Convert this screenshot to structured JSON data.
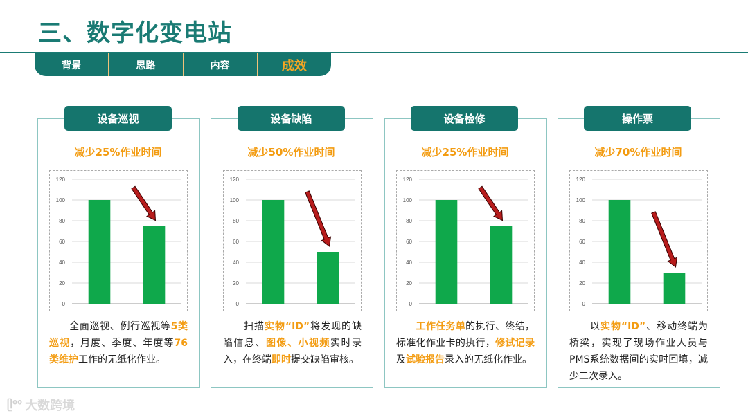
{
  "title": "三、数字化变电站",
  "nav": [
    "背景",
    "思路",
    "内容",
    "成效"
  ],
  "nav_active": 3,
  "watermark": "大数跨境",
  "colors": {
    "accent": "#15756d",
    "highlight": "#f39c12",
    "bar": "#0fa84b",
    "arrow": "#b71c1c"
  },
  "cards": [
    {
      "header": "设备巡视",
      "reduction": "减少25%作业时间",
      "desc": [
        {
          "t": "　　全面巡视、例行巡视等"
        },
        {
          "t": "5类巡视",
          "h": true
        },
        {
          "t": "，月度、季度、年度等"
        },
        {
          "t": "76类维护",
          "h": true
        },
        {
          "t": "工作的无纸化作业。"
        }
      ]
    },
    {
      "header": "设备缺陷",
      "reduction": "减少50%作业时间",
      "desc": [
        {
          "t": "　　扫描"
        },
        {
          "t": "实物“ID”",
          "h": true
        },
        {
          "t": "将发现的缺陷信息、"
        },
        {
          "t": "图像、小视频",
          "h": true
        },
        {
          "t": "实时录入，在终端"
        },
        {
          "t": "即时",
          "h": true
        },
        {
          "t": "提交缺陷审核。"
        }
      ]
    },
    {
      "header": "设备检修",
      "reduction": "减少25%作业时间",
      "desc": [
        {
          "t": "　　"
        },
        {
          "t": "工作任务单",
          "h": true
        },
        {
          "t": "的执行、终结，标准化作业卡的执行，"
        },
        {
          "t": "修试记录",
          "h": true
        },
        {
          "t": "及"
        },
        {
          "t": "试验报告",
          "h": true
        },
        {
          "t": "录入的无纸化作业。"
        }
      ]
    },
    {
      "header": "操作票",
      "reduction": "减少70%作业时间",
      "desc": [
        {
          "t": "　　以"
        },
        {
          "t": "实物“ID”",
          "h": true
        },
        {
          "t": "、移动终端为桥梁，实现了现场作业人员与PMS系统数据间的实时回填，减少二次录入。"
        }
      ]
    }
  ],
  "chart_data": [
    {
      "type": "bar",
      "categories": [
        "",
        ""
      ],
      "values": [
        100,
        75
      ],
      "ylim": [
        0,
        120
      ],
      "yticks": [
        0,
        20,
        40,
        60,
        80,
        100,
        120
      ],
      "grid": true
    },
    {
      "type": "bar",
      "categories": [
        "",
        ""
      ],
      "values": [
        100,
        50
      ],
      "ylim": [
        0,
        120
      ],
      "yticks": [
        0,
        20,
        40,
        60,
        80,
        100,
        120
      ],
      "grid": true
    },
    {
      "type": "bar",
      "categories": [
        "",
        ""
      ],
      "values": [
        100,
        75
      ],
      "ylim": [
        0,
        120
      ],
      "yticks": [
        0,
        20,
        40,
        60,
        80,
        100,
        120
      ],
      "grid": true
    },
    {
      "type": "bar",
      "categories": [
        "",
        ""
      ],
      "values": [
        100,
        30
      ],
      "ylim": [
        0,
        120
      ],
      "yticks": [
        0,
        20,
        40,
        60,
        80,
        100,
        120
      ],
      "grid": true
    }
  ]
}
